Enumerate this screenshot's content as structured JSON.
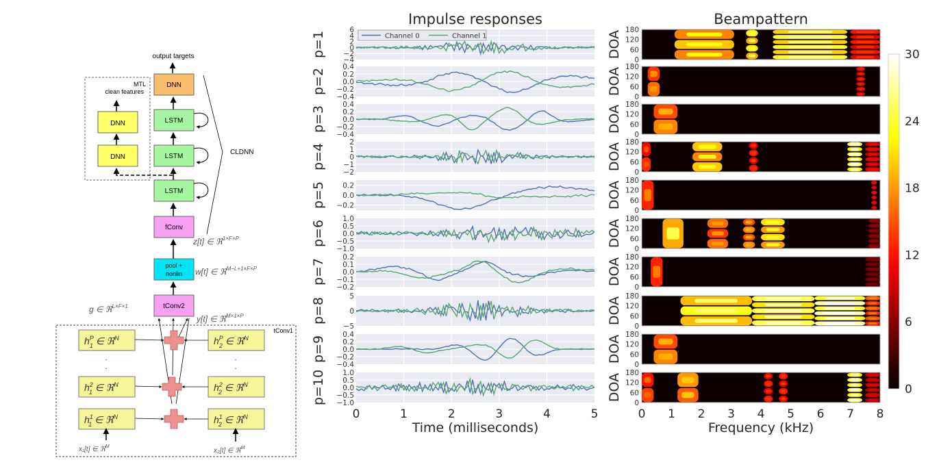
{
  "diagram": {
    "output_targets": "output targets",
    "mtl_label": "MTL",
    "clean_features": "clean features",
    "cldnn_label": "CLDNN",
    "tconv1_label": "tConv1",
    "blocks": {
      "dnn_top": "DNN",
      "mtl_dnn_upper": "DNN",
      "mtl_dnn_lower": "DNN",
      "lstm_1": "LSTM",
      "lstm_2": "LSTM",
      "lstm_3": "LSTM",
      "fconv": "fConv",
      "pool_line1": "pool +",
      "pool_line2": "nonlin",
      "tconv2": "tConv2"
    },
    "colors": {
      "dnn_top": "#f9bd6b",
      "mtl_dnn": "#ffff66",
      "lstm": "#a6f5a0",
      "fconv": "#f7a0f4",
      "pool": "#00e5f5",
      "tconv2": "#f7a0f4",
      "filter": "#f5f59a",
      "plus": "#ee9090"
    },
    "math": {
      "z": "z[t] ∈ ℜ",
      "z_sup": "1×F×P",
      "w": "w[t] ∈ ℜ",
      "w_sup": "M−L+1×F×P",
      "g": "g ∈ ℜ",
      "g_sup": "L×F×1",
      "y": "y[t] ∈ ℜ",
      "y_sup": "M×1×P",
      "h1P": "h",
      "filters_left": [
        {
          "base": "h",
          "sup": "P",
          "sub": "1",
          "rest": " ∈ ℜ",
          "rsup": "N"
        },
        {
          "base": "h",
          "sup": "2",
          "sub": "1",
          "rest": " ∈ ℜ",
          "rsup": "N"
        },
        {
          "base": "h",
          "sup": "1",
          "sub": "1",
          "rest": " ∈ ℜ",
          "rsup": "N"
        }
      ],
      "filters_right": [
        {
          "base": "h",
          "sup": "P",
          "sub": "2",
          "rest": " ∈ ℜ",
          "rsup": "N"
        },
        {
          "base": "h",
          "sup": "2",
          "sub": "2",
          "rest": " ∈ ℜ",
          "rsup": "N"
        },
        {
          "base": "h",
          "sup": "1",
          "sub": "2",
          "rest": " ∈ ℜ",
          "rsup": "N"
        }
      ],
      "x1": "x₁[t] ∈ ℜ",
      "x1_sup": "M",
      "x2": "x₂[t] ∈ ℜ",
      "x2_sup": "M"
    }
  },
  "chart_data": [
    {
      "type": "line",
      "title": "Impulse responses",
      "xlabel": "Time (milliseconds)",
      "xlim": [
        0,
        5
      ],
      "xticks": [
        "0",
        "1",
        "2",
        "3",
        "4",
        "5"
      ],
      "grid": true,
      "legend": {
        "placement": "top-left",
        "entries": [
          "Channel 0",
          "Channel 1"
        ]
      },
      "series_colors": {
        "Channel 0": "#4c72b0",
        "Channel 1": "#55a868"
      },
      "panels": [
        {
          "label": "p=1",
          "ylim": [
            -4,
            6
          ],
          "yticks": [
            "6",
            "4",
            "2",
            "0",
            "−2",
            "−4"
          ],
          "tickvals": [
            6,
            4,
            2,
            0,
            -2,
            -4
          ],
          "amp": 2.5,
          "noise": 1.2,
          "profile": "burst",
          "seed": 1
        },
        {
          "label": "p=2",
          "ylim": [
            -0.4,
            0.4
          ],
          "yticks": [
            "0.4",
            "0.2",
            "0.0",
            "−0.2",
            "−0.4"
          ],
          "tickvals": [
            0.4,
            0.2,
            0,
            -0.2,
            -0.4
          ],
          "amp": 0.27,
          "noise": 0.04,
          "profile": "smooth2",
          "seed": 2
        },
        {
          "label": "p=3",
          "ylim": [
            -0.4,
            0.4
          ],
          "yticks": [
            "0.4",
            "0.2",
            "0.0",
            "−0.2",
            "−0.4"
          ],
          "tickvals": [
            0.4,
            0.2,
            0,
            -0.2,
            -0.4
          ],
          "amp": 0.3,
          "noise": 0.02,
          "profile": "smooth3",
          "seed": 3
        },
        {
          "label": "p=4",
          "ylim": [
            -2,
            2
          ],
          "yticks": [
            "2",
            "1",
            "0",
            "−1",
            "−2"
          ],
          "tickvals": [
            2,
            1,
            0,
            -1,
            -2
          ],
          "amp": 1.0,
          "noise": 0.5,
          "profile": "burst",
          "seed": 4
        },
        {
          "label": "p=5",
          "ylim": [
            -0.3,
            0.3
          ],
          "yticks": [
            "0.2",
            "0.0",
            "−0.2"
          ],
          "tickvals": [
            0.2,
            0,
            -0.2
          ],
          "amp": 0.25,
          "noise": 0.03,
          "profile": "smooth5",
          "seed": 5
        },
        {
          "label": "p=6",
          "ylim": [
            -1.0,
            1.0
          ],
          "yticks": [
            "1.0",
            "0.5",
            "0.0",
            "−0.5",
            "−1.0"
          ],
          "tickvals": [
            1,
            0.5,
            0,
            -0.5,
            -1
          ],
          "amp": 0.7,
          "noise": 0.35,
          "profile": "burst6",
          "seed": 6
        },
        {
          "label": "p=7",
          "ylim": [
            -0.2,
            0.2
          ],
          "yticks": [
            "0.2",
            "0.1",
            "0.0",
            "−0.1",
            "−0.2"
          ],
          "tickvals": [
            0.2,
            0.1,
            0,
            -0.1,
            -0.2
          ],
          "amp": 0.15,
          "noise": 0.02,
          "profile": "smooth7",
          "seed": 7
        },
        {
          "label": "p=8",
          "ylim": [
            -5,
            5
          ],
          "yticks": [
            "5",
            "0",
            "−5"
          ],
          "tickvals": [
            5,
            0,
            -5
          ],
          "amp": 3.5,
          "noise": 1.3,
          "profile": "burst",
          "seed": 8
        },
        {
          "label": "p=9",
          "ylim": [
            -0.4,
            0.4
          ],
          "yticks": [
            "0.4",
            "0.2",
            "0.0",
            "−0.2",
            "−0.4"
          ],
          "tickvals": [
            0.4,
            0.2,
            0,
            -0.2,
            -0.4
          ],
          "amp": 0.3,
          "noise": 0.02,
          "profile": "smooth9",
          "seed": 9
        },
        {
          "label": "p=10",
          "ylim": [
            -1.0,
            1.0
          ],
          "yticks": [
            "1.0",
            "0.5",
            "0.0",
            "−0.5",
            "−1.0"
          ],
          "tickvals": [
            1,
            0.5,
            0,
            -0.5,
            -1
          ],
          "amp": 0.6,
          "noise": 0.35,
          "profile": "burst10",
          "seed": 10
        }
      ]
    },
    {
      "type": "heatmap",
      "title": "Beampattern",
      "xlabel": "Frequency (kHz)",
      "ylabel": "DOA",
      "xlim": [
        0,
        8
      ],
      "ylim": [
        0,
        180
      ],
      "xticks": [
        "0",
        "1",
        "2",
        "3",
        "4",
        "5",
        "6",
        "7",
        "8"
      ],
      "yticks": [
        "180",
        "120",
        "60",
        "0"
      ],
      "colormap": "hot",
      "colorbar": {
        "min": 0,
        "max": 30,
        "ticks": [
          "30",
          "24",
          "18",
          "12",
          "6",
          "0"
        ]
      },
      "panels": [
        {
          "label": "DOA",
          "bands": [
            [
              1.1,
              3.1,
              20,
              3
            ],
            [
              3.5,
              3.9,
              22,
              4
            ],
            [
              4.4,
              6.9,
              24,
              6
            ],
            [
              7.0,
              8.0,
              12,
              6
            ]
          ]
        },
        {
          "label": "DOA",
          "bands": [
            [
              0.2,
              0.6,
              16,
              2
            ],
            [
              7.2,
              7.5,
              11,
              6
            ]
          ]
        },
        {
          "label": "DOA",
          "bands": [
            [
              0.4,
              1.2,
              17,
              2
            ]
          ]
        },
        {
          "label": "DOA",
          "bands": [
            [
              0.0,
              0.3,
              13,
              2
            ],
            [
              1.7,
              2.7,
              20,
              3
            ],
            [
              3.6,
              3.9,
              12,
              4
            ],
            [
              6.9,
              7.4,
              26,
              6
            ],
            [
              7.5,
              8.0,
              10,
              6
            ]
          ]
        },
        {
          "label": "DOA",
          "bands": [
            [
              0.0,
              0.4,
              15,
              1
            ],
            [
              7.7,
              7.9,
              10,
              6
            ]
          ]
        },
        {
          "label": "DOA",
          "bands": [
            [
              0.7,
              1.4,
              22,
              1
            ],
            [
              2.2,
              2.9,
              16,
              3
            ],
            [
              3.4,
              3.8,
              17,
              4
            ],
            [
              4.0,
              4.8,
              21,
              4
            ],
            [
              7.6,
              8.0,
              6,
              6
            ]
          ]
        },
        {
          "label": "DOA",
          "bands": [
            [
              0.3,
              0.7,
              15,
              1
            ],
            [
              7.5,
              8.0,
              5,
              6
            ]
          ]
        },
        {
          "label": "DOA",
          "bands": [
            [
              1.3,
              3.7,
              23,
              3
            ],
            [
              3.7,
              5.8,
              25,
              5
            ],
            [
              5.8,
              7.5,
              28,
              6
            ],
            [
              7.5,
              8.0,
              15,
              6
            ]
          ]
        },
        {
          "label": "DOA",
          "bands": [
            [
              0.4,
              1.2,
              17,
              2
            ]
          ]
        },
        {
          "label": "DOA",
          "bands": [
            [
              0.0,
              0.4,
              14,
              2
            ],
            [
              1.2,
              1.9,
              18,
              2
            ],
            [
              4.1,
              4.4,
              12,
              4
            ],
            [
              4.6,
              4.9,
              12,
              4
            ],
            [
              6.9,
              7.4,
              26,
              6
            ],
            [
              7.5,
              8.0,
              9,
              6
            ]
          ]
        }
      ]
    }
  ]
}
